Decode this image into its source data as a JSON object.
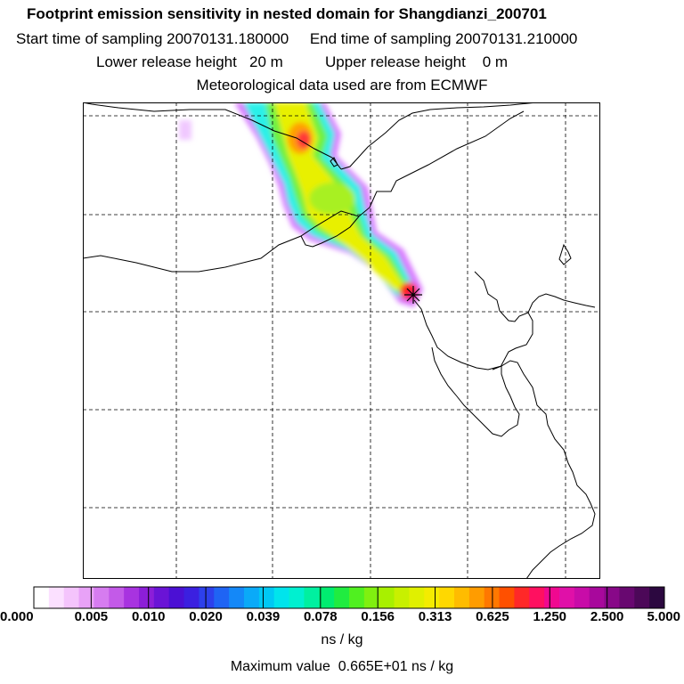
{
  "title": {
    "line1": "Footprint emission sensitivity in nested domain for Shangdianzi_200701",
    "line2": "Start time of sampling 20070131.180000     End time of sampling 20070131.210000",
    "line3": "Lower release height   20 m          Upper release height    0 m",
    "line4": "Meteorological data used are from ECMWF"
  },
  "colorbar": {
    "tick_labels": [
      "0.000",
      "0.005",
      "0.010",
      "0.020",
      "0.039",
      "0.078",
      "0.156",
      "0.313",
      "0.625",
      "1.250",
      "2.500",
      "5.000"
    ],
    "colors": [
      "#ffffff",
      "#fbe0ff",
      "#f4c4fc",
      "#e8a2f7",
      "#d67cf0",
      "#c35ae8",
      "#a833e0",
      "#8c1ed8",
      "#6a14d6",
      "#4b10d4",
      "#3b20e0",
      "#2d40ec",
      "#1f64f4",
      "#1488f8",
      "#0aaaf8",
      "#00c8f4",
      "#00e4ec",
      "#00f0d0",
      "#00f0a0",
      "#00ec70",
      "#20ec40",
      "#50f020",
      "#80f010",
      "#a8f000",
      "#c8f000",
      "#e0f000",
      "#f4ec00",
      "#ffd800",
      "#ffbc00",
      "#ff9c00",
      "#ff7800",
      "#ff5000",
      "#ff2828",
      "#ff1060",
      "#f00890",
      "#e010a8",
      "#c80ca8",
      "#a8089c",
      "#880888",
      "#680870",
      "#4c0858",
      "#2c0840"
    ],
    "units": "ns / kg",
    "max_label": "Maximum value  0.665E+01 ns / kg"
  },
  "map": {
    "gridlines": "dashed",
    "release_site_marker": "star",
    "plume_color_stops": [
      "#e060ff",
      "#3cf0e0",
      "#ffe800",
      "#ff3030"
    ]
  }
}
